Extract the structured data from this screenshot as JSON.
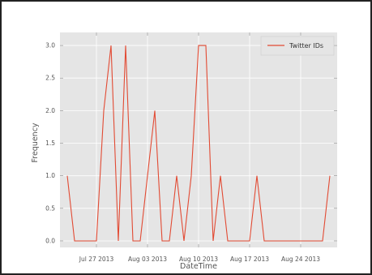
{
  "chart_data": {
    "type": "line",
    "title": "",
    "xlabel": "DateTime",
    "ylabel": "Frequency",
    "ylim": [
      -0.1,
      3.2
    ],
    "xlim": [
      "2013-07-22",
      "2013-08-29"
    ],
    "yticks": [
      "0.0",
      "0.5",
      "1.0",
      "1.5",
      "2.0",
      "2.5",
      "3.0"
    ],
    "xticks": [
      {
        "date": "2013-07-27",
        "label": "Jul 27 2013"
      },
      {
        "date": "2013-08-03",
        "label": "Aug 03 2013"
      },
      {
        "date": "2013-08-10",
        "label": "Aug 10 2013"
      },
      {
        "date": "2013-08-17",
        "label": "Aug 17 2013"
      },
      {
        "date": "2013-08-24",
        "label": "Aug 24 2013"
      }
    ],
    "grid": true,
    "legend_position": "top-right",
    "series": [
      {
        "name": "Twitter IDs",
        "color": "#e24a33",
        "x": [
          "2013-07-23",
          "2013-07-24",
          "2013-07-25",
          "2013-07-26",
          "2013-07-27",
          "2013-07-28",
          "2013-07-29",
          "2013-07-30",
          "2013-07-31",
          "2013-08-01",
          "2013-08-02",
          "2013-08-03",
          "2013-08-04",
          "2013-08-05",
          "2013-08-06",
          "2013-08-07",
          "2013-08-08",
          "2013-08-09",
          "2013-08-10",
          "2013-08-11",
          "2013-08-12",
          "2013-08-13",
          "2013-08-14",
          "2013-08-15",
          "2013-08-16",
          "2013-08-17",
          "2013-08-18",
          "2013-08-19",
          "2013-08-20",
          "2013-08-21",
          "2013-08-22",
          "2013-08-23",
          "2013-08-24",
          "2013-08-25",
          "2013-08-26",
          "2013-08-27",
          "2013-08-28"
        ],
        "values": [
          1,
          0,
          0,
          0,
          0,
          2,
          3,
          0,
          3,
          0,
          0,
          1,
          2,
          0,
          0,
          1,
          0,
          1,
          3,
          3,
          0,
          1,
          0,
          0,
          0,
          0,
          1,
          0,
          0,
          0,
          0,
          0,
          0,
          0,
          0,
          0,
          1
        ]
      }
    ]
  }
}
